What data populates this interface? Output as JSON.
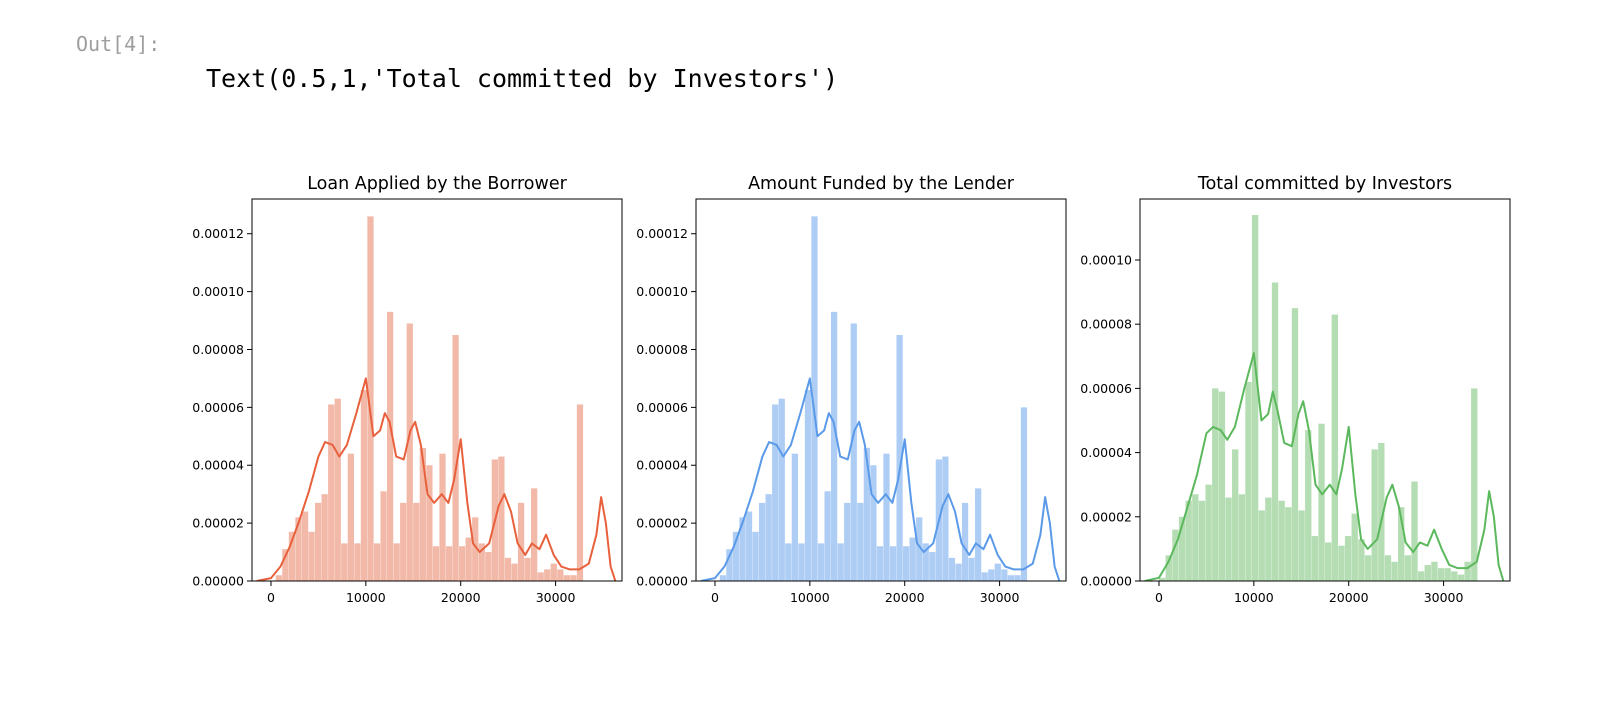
{
  "cell": {
    "prompt": "Out[4]:",
    "output_text": "Text(0.5,1,'Total committed by Investors')"
  },
  "chart_data": [
    {
      "type": "histogram",
      "title": "Loan Applied by the Borrower",
      "color": "#e8603c",
      "bar_color": "#f2b9a9",
      "xlim": [
        -2000,
        37000
      ],
      "ylim": [
        0,
        0.000132
      ],
      "x_ticks": [
        0,
        10000,
        20000,
        30000
      ],
      "x_tick_labels": [
        "0",
        "10000",
        "20000",
        "30000"
      ],
      "y_ticks": [
        0,
        2e-05,
        4e-05,
        6e-05,
        8e-05,
        0.0001,
        0.00012
      ],
      "y_tick_labels": [
        "0.00000",
        "0.00002",
        "0.00004",
        "0.00006",
        "0.00008",
        "0.00010",
        "0.00012"
      ],
      "bin_start": 500,
      "bin_width": 690,
      "bin_values": [
        2e-06,
        1.1e-05,
        1.7e-05,
        2.2e-05,
        2.4e-05,
        1.7e-05,
        2.7e-05,
        3e-05,
        6.1e-05,
        6.3e-05,
        1.3e-05,
        4.4e-05,
        1.3e-05,
        6.6e-05,
        0.000126,
        1.3e-05,
        3.1e-05,
        9.3e-05,
        1.3e-05,
        2.7e-05,
        8.9e-05,
        2.7e-05,
        4.6e-05,
        4e-05,
        1.2e-05,
        4.4e-05,
        1.2e-05,
        8.5e-05,
        1.2e-05,
        1.5e-05,
        2.2e-05,
        1.3e-05,
        1e-05,
        4.2e-05,
        4.3e-05,
        8e-06,
        6e-06,
        2.7e-05,
        8e-06,
        3.2e-05,
        3e-06,
        4e-06,
        6e-06,
        4e-06,
        2e-06,
        2e-06,
        6.1e-05
      ],
      "kde_x": [
        -1500,
        0,
        1000,
        2000,
        3000,
        4000,
        5000,
        5700,
        6500,
        7200,
        8000,
        9000,
        10000,
        10800,
        11500,
        12000,
        12500,
        13200,
        14000,
        14700,
        15200,
        15800,
        16500,
        17200,
        18000,
        18700,
        19300,
        20000,
        20700,
        21300,
        22000,
        23000,
        24000,
        24600,
        25300,
        26000,
        26800,
        27500,
        28300,
        29000,
        29800,
        30600,
        31500,
        32500,
        33500,
        34300,
        34800,
        35300,
        35800,
        36300
      ],
      "kde_y": [
        0,
        1e-06,
        5e-06,
        1.2e-05,
        2.1e-05,
        3.1e-05,
        4.3e-05,
        4.8e-05,
        4.7e-05,
        4.3e-05,
        4.7e-05,
        5.8e-05,
        7e-05,
        5e-05,
        5.2e-05,
        5.8e-05,
        5.5e-05,
        4.3e-05,
        4.2e-05,
        5.2e-05,
        5.5e-05,
        4.7e-05,
        3e-05,
        2.7e-05,
        3e-05,
        2.7e-05,
        3.5e-05,
        4.9e-05,
        2.7e-05,
        1.3e-05,
        1e-05,
        1.3e-05,
        2.6e-05,
        3e-05,
        2.4e-05,
        1.3e-05,
        9e-06,
        1.3e-05,
        1.1e-05,
        1.6e-05,
        9e-06,
        5e-06,
        4e-06,
        4e-06,
        6e-06,
        1.6e-05,
        2.9e-05,
        2e-05,
        5e-06,
        0
      ]
    },
    {
      "type": "histogram",
      "title": "Amount Funded by the Lender",
      "color": "#5a9ae8",
      "bar_color": "#aecdf5",
      "xlim": [
        -2000,
        37000
      ],
      "ylim": [
        0,
        0.000132
      ],
      "x_ticks": [
        0,
        10000,
        20000,
        30000
      ],
      "x_tick_labels": [
        "0",
        "10000",
        "20000",
        "30000"
      ],
      "y_ticks": [
        0,
        2e-05,
        4e-05,
        6e-05,
        8e-05,
        0.0001,
        0.00012
      ],
      "y_tick_labels": [
        "0.00000",
        "0.00002",
        "0.00004",
        "0.00006",
        "0.00008",
        "0.00010",
        "0.00012"
      ],
      "bin_start": 500,
      "bin_width": 690,
      "bin_values": [
        2e-06,
        1.1e-05,
        1.7e-05,
        2.2e-05,
        2.4e-05,
        1.7e-05,
        2.7e-05,
        3e-05,
        6.1e-05,
        6.3e-05,
        1.3e-05,
        4.4e-05,
        1.3e-05,
        6.6e-05,
        0.000126,
        1.3e-05,
        3.1e-05,
        9.3e-05,
        1.3e-05,
        2.7e-05,
        8.9e-05,
        2.7e-05,
        4.6e-05,
        4e-05,
        1.2e-05,
        4.4e-05,
        1.2e-05,
        8.5e-05,
        1.2e-05,
        1.5e-05,
        2.2e-05,
        1.3e-05,
        1e-05,
        4.2e-05,
        4.3e-05,
        8e-06,
        6e-06,
        2.7e-05,
        8e-06,
        3.2e-05,
        3e-06,
        4e-06,
        6e-06,
        4e-06,
        2e-06,
        2e-06,
        6e-05
      ],
      "kde_x": [
        -1500,
        0,
        1000,
        2000,
        3000,
        4000,
        5000,
        5700,
        6500,
        7200,
        8000,
        9000,
        10000,
        10800,
        11500,
        12000,
        12500,
        13200,
        14000,
        14700,
        15200,
        15800,
        16500,
        17200,
        18000,
        18700,
        19300,
        20000,
        20700,
        21300,
        22000,
        23000,
        24000,
        24600,
        25300,
        26000,
        26800,
        27500,
        28300,
        29000,
        29800,
        30600,
        31500,
        32500,
        33500,
        34300,
        34800,
        35300,
        35800,
        36300
      ],
      "kde_y": [
        0,
        1e-06,
        5e-06,
        1.2e-05,
        2.1e-05,
        3.1e-05,
        4.3e-05,
        4.8e-05,
        4.7e-05,
        4.3e-05,
        4.7e-05,
        5.8e-05,
        7e-05,
        5e-05,
        5.2e-05,
        5.8e-05,
        5.5e-05,
        4.3e-05,
        4.2e-05,
        5.2e-05,
        5.5e-05,
        4.7e-05,
        3e-05,
        2.7e-05,
        3e-05,
        2.7e-05,
        3.5e-05,
        4.9e-05,
        2.7e-05,
        1.3e-05,
        1e-05,
        1.3e-05,
        2.6e-05,
        3e-05,
        2.4e-05,
        1.3e-05,
        9e-06,
        1.3e-05,
        1.1e-05,
        1.6e-05,
        9e-06,
        5e-06,
        4e-06,
        4e-06,
        6e-06,
        1.6e-05,
        2.9e-05,
        2e-05,
        5e-06,
        0
      ]
    },
    {
      "type": "histogram",
      "title": "Total committed by Investors",
      "color": "#5cb85c",
      "bar_color": "#b5ddb3",
      "xlim": [
        -2000,
        37000
      ],
      "ylim": [
        0,
        0.000119
      ],
      "x_ticks": [
        0,
        10000,
        20000,
        30000
      ],
      "x_tick_labels": [
        "0",
        "10000",
        "20000",
        "30000"
      ],
      "y_ticks": [
        0,
        2e-05,
        4e-05,
        6e-05,
        8e-05,
        0.0001
      ],
      "y_tick_labels": [
        "0.00000",
        "0.00002",
        "0.00004",
        "0.00006",
        "0.00008",
        "0.00010"
      ],
      "bin_start": 0,
      "bin_width": 700,
      "bin_values": [
        1e-06,
        8e-06,
        1.6e-05,
        2e-05,
        2.5e-05,
        2.7e-05,
        2.5e-05,
        3e-05,
        6e-05,
        5.9e-05,
        2.6e-05,
        4.1e-05,
        2.7e-05,
        6.2e-05,
        0.000114,
        2.2e-05,
        2.6e-05,
        9.3e-05,
        2.5e-05,
        2.3e-05,
        8.5e-05,
        2.2e-05,
        4.7e-05,
        1.4e-05,
        4.9e-05,
        1.2e-05,
        8.3e-05,
        1.1e-05,
        1.4e-05,
        2.1e-05,
        1.3e-05,
        8e-06,
        4.1e-05,
        4.3e-05,
        8e-06,
        6e-06,
        2.3e-05,
        8e-06,
        3.1e-05,
        3e-06,
        5e-06,
        6e-06,
        4e-06,
        4e-06,
        3e-06,
        2e-06,
        6e-06,
        6e-05
      ],
      "kde_x": [
        -1500,
        0,
        1000,
        2000,
        3000,
        4000,
        5000,
        5700,
        6500,
        7200,
        8000,
        9000,
        10000,
        10800,
        11500,
        12000,
        12500,
        13200,
        14000,
        14700,
        15200,
        15800,
        16500,
        17200,
        18000,
        18700,
        19300,
        20000,
        20700,
        21300,
        22000,
        23000,
        24000,
        24600,
        25300,
        26000,
        26800,
        27500,
        28300,
        29000,
        29800,
        30600,
        31500,
        32500,
        33500,
        34300,
        34800,
        35300,
        35800,
        36300
      ],
      "kde_y": [
        0,
        1e-06,
        6e-06,
        1.3e-05,
        2.3e-05,
        3.3e-05,
        4.6e-05,
        4.8e-05,
        4.7e-05,
        4.4e-05,
        4.8e-05,
        6e-05,
        7.1e-05,
        5e-05,
        5.2e-05,
        5.9e-05,
        5.3e-05,
        4.3e-05,
        4.2e-05,
        5.2e-05,
        5.6e-05,
        4.7e-05,
        3e-05,
        2.7e-05,
        3e-05,
        2.7e-05,
        3.5e-05,
        4.8e-05,
        2.7e-05,
        1.3e-05,
        1e-05,
        1.3e-05,
        2.6e-05,
        3e-05,
        2.3e-05,
        1.2e-05,
        9e-06,
        1.2e-05,
        1.1e-05,
        1.6e-05,
        1e-05,
        5e-06,
        4e-06,
        4e-06,
        6e-06,
        1.6e-05,
        2.8e-05,
        2e-05,
        5e-06,
        0
      ]
    }
  ]
}
